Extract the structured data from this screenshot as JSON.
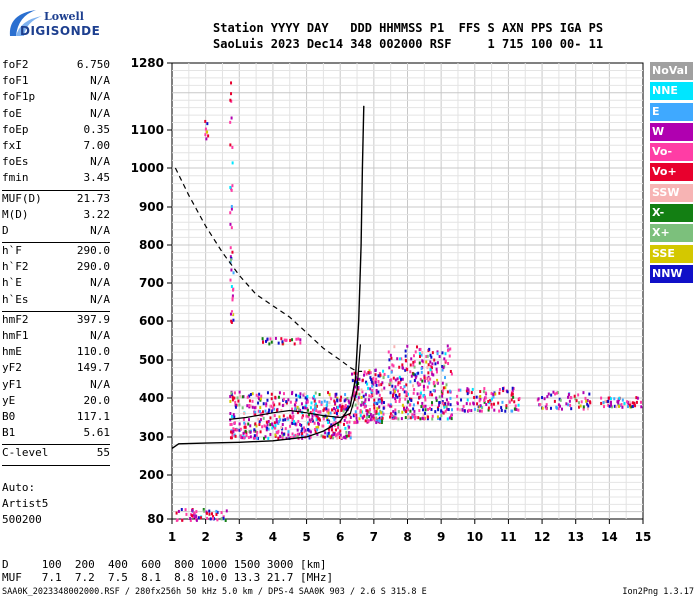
{
  "logo": {
    "line1": "Lowell",
    "line2": "DIGISONDE"
  },
  "header": {
    "line1": "Station YYYY DAY   DDD HHMMSS P1  FFS S AXN PPS IGA PS",
    "line2": "SaoLuis 2023 Dec14 348 002000 RSF     1 715 100 00- 11"
  },
  "params": [
    {
      "name": "foF2",
      "value": "6.750"
    },
    {
      "name": "foF1",
      "value": "N/A"
    },
    {
      "name": "foF1p",
      "value": "N/A"
    },
    {
      "name": "foE",
      "value": "N/A"
    },
    {
      "name": "foEp",
      "value": "0.35"
    },
    {
      "name": "fxI",
      "value": "7.00"
    },
    {
      "name": "foEs",
      "value": "N/A"
    },
    {
      "name": "fmin",
      "value": "3.45"
    },
    {
      "sep": true
    },
    {
      "name": "MUF(D)",
      "value": "21.73"
    },
    {
      "name": "M(D)",
      "value": "3.22"
    },
    {
      "name": "D",
      "value": "N/A"
    },
    {
      "sep": true
    },
    {
      "name": "h`F",
      "value": "290.0"
    },
    {
      "name": "h`F2",
      "value": "290.0"
    },
    {
      "name": "h`E",
      "value": "N/A"
    },
    {
      "name": "h`Es",
      "value": "N/A"
    },
    {
      "sep": true
    },
    {
      "name": "hmF2",
      "value": "397.9"
    },
    {
      "name": "hmF1",
      "value": "N/A"
    },
    {
      "name": "hmE",
      "value": "110.0"
    },
    {
      "name": "yF2",
      "value": "149.7"
    },
    {
      "name": "yF1",
      "value": "N/A"
    },
    {
      "name": "yE",
      "value": "20.0"
    },
    {
      "name": "B0",
      "value": "117.1"
    },
    {
      "name": "B1",
      "value": "5.61"
    },
    {
      "sep": true
    },
    {
      "name": "C-level",
      "value": "55"
    },
    {
      "sep": true
    }
  ],
  "auto": {
    "line1": "Auto:",
    "line2": "Artist5",
    "line3": "500200"
  },
  "muf_table": {
    "line1": "D     100  200  400  600  800 1000 1500 3000 [km]",
    "line2": "MUF   7.1  7.2  7.5  8.1  8.8 10.0 13.3 21.7 [MHz]"
  },
  "footer": "SAA0K_2023348002000.RSF / 280fx256h 50 kHz 5.0 km / DPS-4 SAA0K 903 / 2.6 S 315.8 E",
  "version": "Ion2Png 1.3.17",
  "legend": [
    {
      "label": "NoVal",
      "color": "#a0a0a0"
    },
    {
      "label": "NNE",
      "color": "#00e6ff"
    },
    {
      "label": "E",
      "color": "#3fa9ff"
    },
    {
      "label": "W",
      "color": "#b000b0"
    },
    {
      "label": "Vo-",
      "color": "#ff3da5"
    },
    {
      "label": "Vo+",
      "color": "#e8002d"
    },
    {
      "label": "SSW",
      "color": "#f7b4b4"
    },
    {
      "label": "X-",
      "color": "#137f13"
    },
    {
      "label": "X+",
      "color": "#7cc07c"
    },
    {
      "label": "SSE",
      "color": "#d4c800"
    },
    {
      "label": "NNW",
      "color": "#1010c8"
    }
  ],
  "chart_data": {
    "type": "scatter",
    "xlim": [
      1,
      15
    ],
    "ylim": [
      80,
      1280
    ],
    "x_ticks": [
      1,
      2,
      3,
      4,
      5,
      6,
      7,
      8,
      9,
      10,
      11,
      12,
      13,
      14,
      15
    ],
    "y_ticks": [
      80,
      200,
      300,
      400,
      500,
      600,
      700,
      800,
      900,
      1000,
      1100,
      1280
    ],
    "y_tick_labels": [
      "80",
      "200",
      "300",
      "400",
      "500",
      "600",
      "700",
      "800",
      "900",
      "1000",
      "1100",
      "1280"
    ],
    "grid": true,
    "profile_curve": [
      [
        1.0,
        270
      ],
      [
        1.2,
        282
      ],
      [
        2,
        284
      ],
      [
        3,
        286
      ],
      [
        4,
        290
      ],
      [
        5,
        300
      ],
      [
        5.5,
        315
      ],
      [
        6,
        340
      ],
      [
        6.3,
        380
      ],
      [
        6.45,
        450
      ],
      [
        6.55,
        600
      ],
      [
        6.62,
        800
      ],
      [
        6.66,
        1000
      ],
      [
        6.7,
        1165
      ]
    ],
    "trace_curve": [
      [
        2.7,
        345
      ],
      [
        3.2,
        350
      ],
      [
        4,
        362
      ],
      [
        4.5,
        368
      ],
      [
        5,
        362
      ],
      [
        5.5,
        355
      ],
      [
        6,
        350
      ],
      [
        6.3,
        360
      ],
      [
        6.5,
        420
      ],
      [
        6.6,
        540
      ]
    ],
    "muf_curve": [
      [
        1.1,
        1000
      ],
      [
        1.5,
        930
      ],
      [
        2,
        850
      ],
      [
        2.5,
        780
      ],
      [
        3,
        720
      ],
      [
        3.5,
        670
      ],
      [
        4,
        640
      ],
      [
        4.5,
        610
      ],
      [
        5,
        570
      ],
      [
        5.5,
        530
      ],
      [
        6,
        500
      ],
      [
        6.3,
        480
      ],
      [
        6.5,
        470
      ],
      [
        6.65,
        470
      ]
    ],
    "echo_clusters": [
      {
        "x": [
          2.7,
          6.3
        ],
        "y": [
          300,
          420
        ],
        "n": 520
      },
      {
        "x": [
          6.3,
          7.3
        ],
        "y": [
          340,
          480
        ],
        "n": 200
      },
      {
        "x": [
          7.4,
          9.3
        ],
        "y": [
          350,
          540
        ],
        "n": 330
      },
      {
        "x": [
          9.4,
          11.3
        ],
        "y": [
          370,
          430
        ],
        "n": 110
      },
      {
        "x": [
          11.8,
          13.5
        ],
        "y": [
          375,
          420
        ],
        "n": 60
      },
      {
        "x": [
          13.7,
          15
        ],
        "y": [
          380,
          405
        ],
        "n": 55
      },
      {
        "x": [
          1.1,
          2.6
        ],
        "y": [
          80,
          110
        ],
        "n": 55
      },
      {
        "x": [
          2.7,
          2.8
        ],
        "y": [
          600,
          1250
        ],
        "n": 40
      },
      {
        "x": [
          1.95,
          2.05
        ],
        "y": [
          1080,
          1130
        ],
        "n": 8
      },
      {
        "x": [
          3.6,
          4.9
        ],
        "y": [
          545,
          560
        ],
        "n": 25
      }
    ]
  }
}
